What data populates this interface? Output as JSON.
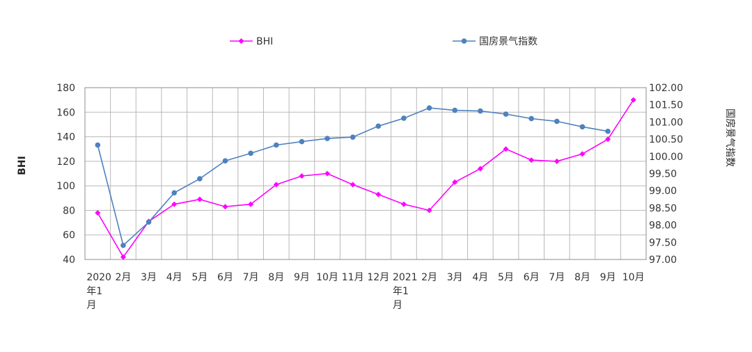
{
  "chart_data": {
    "type": "line",
    "legend_position": "top",
    "grid": true,
    "y_left": {
      "label": "BHI",
      "range": [
        40,
        180
      ],
      "ticks": [
        "40",
        "60",
        "80",
        "100",
        "120",
        "140",
        "160",
        "180"
      ]
    },
    "y_right": {
      "label": "国房景气指数",
      "range": [
        97.0,
        102.0
      ],
      "ticks": [
        "97.00",
        "97.50",
        "98.00",
        "98.50",
        "99.00",
        "99.50",
        "100.00",
        "100.50",
        "101.00",
        "101.50",
        "102.00"
      ]
    },
    "categories": [
      [
        "2020",
        "年1",
        "月"
      ],
      [
        "2月"
      ],
      [
        "3月"
      ],
      [
        "4月"
      ],
      [
        "5月"
      ],
      [
        "6月"
      ],
      [
        "7月"
      ],
      [
        "8月"
      ],
      [
        "9月"
      ],
      [
        "10月"
      ],
      [
        "11月"
      ],
      [
        "12月"
      ],
      [
        "2021",
        "年1",
        "月"
      ],
      [
        "2月"
      ],
      [
        "3月"
      ],
      [
        "4月"
      ],
      [
        "5月"
      ],
      [
        "6月"
      ],
      [
        "7月"
      ],
      [
        "8月"
      ],
      [
        "9月"
      ],
      [
        "10月"
      ]
    ],
    "series": [
      {
        "name": "BHI",
        "axis": "left",
        "color": "#ff00ff",
        "marker": "diamond",
        "values": [
          78,
          42,
          71,
          85,
          89,
          83,
          85,
          101,
          108,
          110,
          101,
          93,
          85,
          80,
          103,
          114,
          130,
          121,
          120,
          126,
          138,
          170
        ]
      },
      {
        "name": "国房景气指数",
        "axis": "right",
        "color": "#4f81bd",
        "marker": "circle",
        "values": [
          100.33,
          97.41,
          98.09,
          98.94,
          99.35,
          99.87,
          100.09,
          100.33,
          100.43,
          100.52,
          100.56,
          100.88,
          101.11,
          101.41,
          101.34,
          101.32,
          101.23,
          101.1,
          101.02,
          100.86,
          100.73,
          null
        ]
      }
    ]
  }
}
